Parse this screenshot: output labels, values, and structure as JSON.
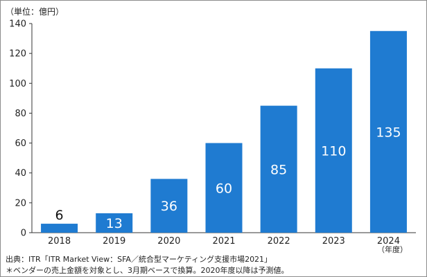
{
  "chart_data": {
    "type": "bar",
    "unit_label": "（単位：億円）",
    "x_unit_label": "（年度）",
    "categories": [
      "2018",
      "2019",
      "2020",
      "2021",
      "2022",
      "2023",
      "2024"
    ],
    "values": [
      6,
      13,
      36,
      60,
      85,
      110,
      135
    ],
    "value_labels": [
      "6",
      "13",
      "36",
      "60",
      "85",
      "110",
      "135"
    ],
    "ylim": [
      0,
      140
    ],
    "y_ticks": [
      0,
      20,
      40,
      60,
      80,
      100,
      120,
      140
    ],
    "grid": false,
    "bar_color": "#1f7bd1"
  },
  "footer": {
    "source": "出典：ITR「ITR Market View：SFA／統合型マーケティング支援市場2021」",
    "note": "＊ベンダーの売上金額を対象とし、3月期ベースで換算。2020年度以降は予測値。"
  }
}
